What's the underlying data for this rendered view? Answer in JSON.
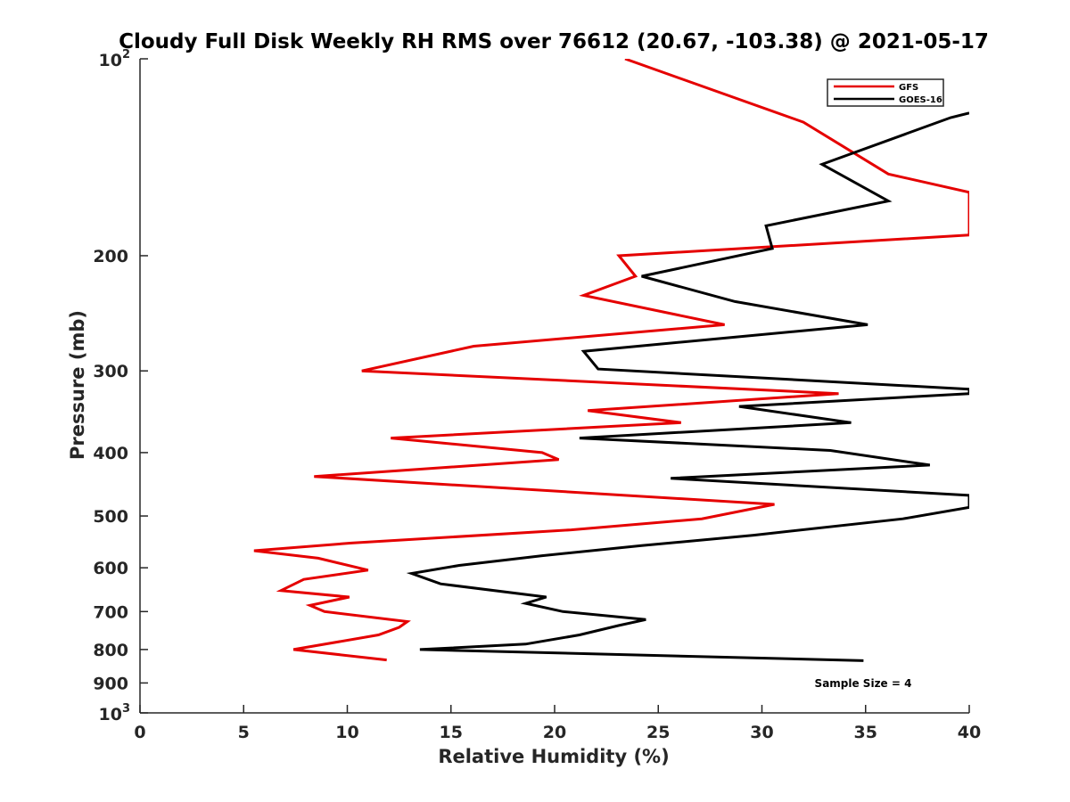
{
  "chart_data": {
    "type": "line",
    "title": "Cloudy Full Disk Weekly RH RMS over 76612 (20.67, -103.38) @ 2021-05-17",
    "xlabel": "Relative Humidity (%)",
    "ylabel": "Pressure (mb)",
    "xlim": [
      0,
      40
    ],
    "ylim": [
      100,
      1000
    ],
    "yscale": "log",
    "y_reversed": true,
    "x_ticks": [
      0,
      5,
      10,
      15,
      20,
      25,
      30,
      35,
      40
    ],
    "x_tick_labels": [
      "0",
      "5",
      "10",
      "15",
      "20",
      "25",
      "30",
      "35",
      "40"
    ],
    "y_ticks": [
      {
        "value": 100,
        "base": "10",
        "exp": "2"
      },
      {
        "value": 200,
        "label": "200"
      },
      {
        "value": 300,
        "label": "300"
      },
      {
        "value": 400,
        "label": "400"
      },
      {
        "value": 500,
        "label": "500"
      },
      {
        "value": 600,
        "label": "600"
      },
      {
        "value": 700,
        "label": "700"
      },
      {
        "value": 800,
        "label": "800"
      },
      {
        "value": 900,
        "label": "900"
      },
      {
        "value": 1000,
        "base": "10",
        "exp": "3"
      }
    ],
    "legend_position": "top-right",
    "annotation": "Sample Size = 4",
    "series": [
      {
        "name": "GFS",
        "color": "#e50000",
        "points": [
          [
            23.4,
            100
          ],
          [
            32.0,
            125
          ],
          [
            36.1,
            150
          ],
          [
            40.0,
            160
          ],
          [
            40.0,
            186
          ],
          [
            23.1,
            200
          ],
          [
            23.9,
            215
          ],
          [
            21.4,
            230
          ],
          [
            28.2,
            255
          ],
          [
            16.1,
            275
          ],
          [
            10.7,
            300
          ],
          [
            33.7,
            325
          ],
          [
            21.6,
            345
          ],
          [
            26.1,
            360
          ],
          [
            12.1,
            380
          ],
          [
            19.4,
            400
          ],
          [
            20.2,
            410
          ],
          [
            8.4,
            435
          ],
          [
            30.6,
            480
          ],
          [
            27.1,
            505
          ],
          [
            20.8,
            525
          ],
          [
            10.2,
            550
          ],
          [
            5.5,
            565
          ],
          [
            8.6,
            580
          ],
          [
            11.0,
            605
          ],
          [
            7.9,
            625
          ],
          [
            6.8,
            650
          ],
          [
            10.1,
            665
          ],
          [
            8.2,
            685
          ],
          [
            8.9,
            700
          ],
          [
            12.9,
            725
          ],
          [
            12.5,
            740
          ],
          [
            11.5,
            760
          ],
          [
            7.4,
            800
          ],
          [
            11.9,
            830
          ]
        ]
      },
      {
        "name": "GOES-16",
        "color": "#000000",
        "points": [
          [
            40.0,
            121
          ],
          [
            39.1,
            123
          ],
          [
            32.9,
            145
          ],
          [
            36.1,
            165
          ],
          [
            30.2,
            180
          ],
          [
            30.5,
            195
          ],
          [
            24.2,
            215
          ],
          [
            28.7,
            235
          ],
          [
            35.1,
            255
          ],
          [
            21.4,
            280
          ],
          [
            22.1,
            298
          ],
          [
            40.0,
            320
          ],
          [
            40.0,
            325
          ],
          [
            28.9,
            340
          ],
          [
            34.3,
            360
          ],
          [
            21.2,
            380
          ],
          [
            33.3,
            397
          ],
          [
            38.1,
            418
          ],
          [
            25.6,
            438
          ],
          [
            40.0,
            465
          ],
          [
            40.0,
            485
          ],
          [
            36.8,
            505
          ],
          [
            29.6,
            535
          ],
          [
            24.2,
            555
          ],
          [
            19.4,
            575
          ],
          [
            15.4,
            595
          ],
          [
            13.1,
            612
          ],
          [
            14.5,
            635
          ],
          [
            19.6,
            665
          ],
          [
            18.6,
            680
          ],
          [
            20.4,
            700
          ],
          [
            24.4,
            720
          ],
          [
            23.1,
            735
          ],
          [
            21.2,
            760
          ],
          [
            18.6,
            785
          ],
          [
            13.5,
            800
          ],
          [
            34.9,
            832
          ]
        ]
      }
    ]
  }
}
